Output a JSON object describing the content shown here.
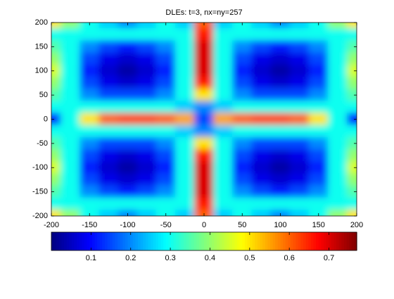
{
  "chart_data": {
    "type": "heatmap",
    "title": "DLEs: t=3, nx=ny=257",
    "x": [
      -200,
      -175,
      -150,
      -125,
      -100,
      -75,
      -50,
      -25,
      0,
      25,
      50,
      75,
      100,
      125,
      150,
      175,
      200
    ],
    "y": [
      200,
      175,
      150,
      125,
      100,
      75,
      50,
      25,
      0,
      -25,
      -50,
      -75,
      -100,
      -125,
      -150,
      -175,
      -200
    ],
    "z": [
      [
        0.5,
        0.4,
        0.3,
        0.25,
        0.2,
        0.25,
        0.3,
        0.25,
        0.6,
        0.25,
        0.3,
        0.25,
        0.2,
        0.25,
        0.3,
        0.4,
        0.5
      ],
      [
        0.3,
        0.3,
        0.3,
        0.3,
        0.3,
        0.3,
        0.3,
        0.3,
        0.65,
        0.3,
        0.3,
        0.3,
        0.3,
        0.3,
        0.3,
        0.3,
        0.3
      ],
      [
        0.35,
        0.3,
        0.2,
        0.15,
        0.12,
        0.15,
        0.2,
        0.3,
        0.7,
        0.3,
        0.2,
        0.15,
        0.12,
        0.15,
        0.2,
        0.3,
        0.35
      ],
      [
        0.4,
        0.3,
        0.15,
        0.08,
        0.06,
        0.08,
        0.15,
        0.3,
        0.7,
        0.3,
        0.15,
        0.08,
        0.06,
        0.08,
        0.15,
        0.3,
        0.4
      ],
      [
        0.45,
        0.3,
        0.12,
        0.06,
        0.03,
        0.06,
        0.12,
        0.3,
        0.7,
        0.3,
        0.12,
        0.06,
        0.03,
        0.06,
        0.12,
        0.3,
        0.45
      ],
      [
        0.4,
        0.3,
        0.15,
        0.08,
        0.06,
        0.08,
        0.15,
        0.3,
        0.65,
        0.3,
        0.15,
        0.08,
        0.06,
        0.08,
        0.15,
        0.3,
        0.4
      ],
      [
        0.35,
        0.3,
        0.2,
        0.15,
        0.15,
        0.15,
        0.2,
        0.3,
        0.5,
        0.3,
        0.2,
        0.15,
        0.15,
        0.15,
        0.2,
        0.3,
        0.35
      ],
      [
        0.3,
        0.3,
        0.3,
        0.3,
        0.3,
        0.3,
        0.3,
        0.25,
        0.2,
        0.25,
        0.3,
        0.3,
        0.3,
        0.3,
        0.3,
        0.3,
        0.3
      ],
      [
        0.1,
        0.3,
        0.5,
        0.6,
        0.62,
        0.62,
        0.6,
        0.55,
        0.15,
        0.55,
        0.6,
        0.62,
        0.62,
        0.6,
        0.5,
        0.3,
        0.1
      ],
      [
        0.3,
        0.3,
        0.3,
        0.3,
        0.3,
        0.3,
        0.3,
        0.25,
        0.2,
        0.25,
        0.3,
        0.3,
        0.3,
        0.3,
        0.3,
        0.3,
        0.3
      ],
      [
        0.35,
        0.3,
        0.2,
        0.15,
        0.15,
        0.15,
        0.2,
        0.3,
        0.5,
        0.3,
        0.2,
        0.15,
        0.15,
        0.15,
        0.2,
        0.3,
        0.35
      ],
      [
        0.4,
        0.3,
        0.15,
        0.08,
        0.06,
        0.08,
        0.15,
        0.3,
        0.65,
        0.3,
        0.15,
        0.08,
        0.06,
        0.08,
        0.15,
        0.3,
        0.4
      ],
      [
        0.45,
        0.3,
        0.12,
        0.06,
        0.03,
        0.06,
        0.12,
        0.3,
        0.7,
        0.3,
        0.12,
        0.06,
        0.03,
        0.06,
        0.12,
        0.3,
        0.45
      ],
      [
        0.4,
        0.3,
        0.15,
        0.08,
        0.06,
        0.08,
        0.15,
        0.3,
        0.7,
        0.3,
        0.15,
        0.08,
        0.06,
        0.08,
        0.15,
        0.3,
        0.4
      ],
      [
        0.35,
        0.3,
        0.2,
        0.15,
        0.12,
        0.15,
        0.2,
        0.3,
        0.7,
        0.3,
        0.2,
        0.15,
        0.12,
        0.15,
        0.2,
        0.3,
        0.35
      ],
      [
        0.3,
        0.3,
        0.3,
        0.3,
        0.3,
        0.3,
        0.3,
        0.3,
        0.65,
        0.3,
        0.3,
        0.3,
        0.3,
        0.3,
        0.3,
        0.3,
        0.3
      ],
      [
        0.5,
        0.4,
        0.3,
        0.25,
        0.2,
        0.25,
        0.3,
        0.25,
        0.6,
        0.25,
        0.3,
        0.25,
        0.2,
        0.25,
        0.3,
        0.4,
        0.5
      ]
    ],
    "xlim": [
      -200,
      200
    ],
    "ylim": [
      -200,
      200
    ],
    "xticks": [
      -200,
      -150,
      -100,
      -50,
      0,
      50,
      100,
      150,
      200
    ],
    "yticks": [
      -200,
      -150,
      -100,
      -50,
      0,
      50,
      100,
      150,
      200
    ],
    "colormap": "jet",
    "clim": [
      0,
      0.77
    ],
    "colorbar_ticks": [
      0.1,
      0.2,
      0.3,
      0.4,
      0.5,
      0.6,
      0.7
    ]
  }
}
